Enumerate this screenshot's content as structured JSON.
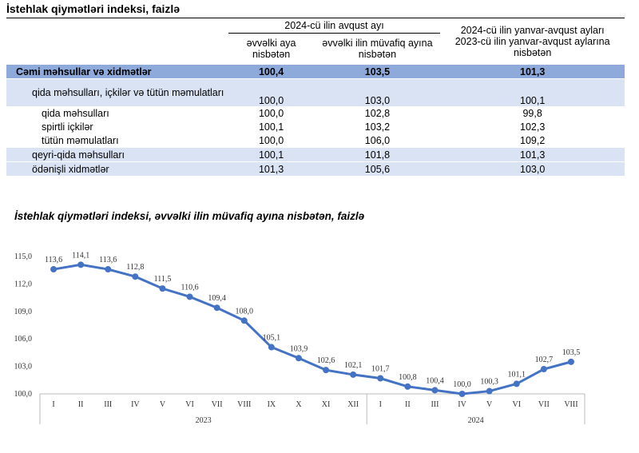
{
  "title": "İstehlak qiymətləri indeksi, faizlə",
  "table": {
    "group_header": "2024-cü ilin avqust ayı",
    "columns": [
      "əvvəlki aya nisbətən",
      "əvvəlki ilin müvafiq ayına nisbətən",
      "2024-cü ilin yanvar-avqust ayları 2023-cü ilin yanvar-avqust aylarına nisbətən"
    ],
    "rows": [
      [
        "Cəmi məhsullar və xidmətlər",
        "100,4",
        "103,5",
        "101,3"
      ],
      [
        "qida məhsulları, içkilər və tütün məmulatları",
        "100,0",
        "103,0",
        "100,1"
      ],
      [
        "qida məhsulları",
        "100,0",
        "102,8",
        "99,8"
      ],
      [
        "spirtli içkilər",
        "100,1",
        "103,2",
        "102,3"
      ],
      [
        "tütün məmulatları",
        "100,0",
        "106,0",
        "109,2"
      ],
      [
        "qeyri-qida məhsulları",
        "100,1",
        "101,8",
        "101,3"
      ],
      [
        "ödənişli xidmətlər",
        "101,3",
        "105,6",
        "103,0"
      ]
    ]
  },
  "chart_data": {
    "type": "line",
    "title": "İstehlak qiymətləri indeksi, əvvəlki ilin müvafiq ayına nisbətən, faizlə",
    "groups": [
      {
        "name": "2023",
        "categories": [
          "I",
          "II",
          "III",
          "IV",
          "V",
          "VI",
          "VII",
          "VIII",
          "IX",
          "X",
          "XI",
          "XII"
        ]
      },
      {
        "name": "2024",
        "categories": [
          "I",
          "II",
          "III",
          "IV",
          "V",
          "VI",
          "VII",
          "VIII"
        ]
      }
    ],
    "values": [
      113.6,
      114.1,
      113.6,
      112.8,
      111.5,
      110.6,
      109.4,
      108.0,
      105.1,
      103.9,
      102.6,
      102.1,
      101.7,
      100.8,
      100.4,
      100.0,
      100.3,
      101.1,
      102.7,
      103.5
    ],
    "value_labels": [
      "113,6",
      "114,1",
      "113,6",
      "112,8",
      "111,5",
      "110,6",
      "109,4",
      "108,0",
      "105,1",
      "103,9",
      "102,6",
      "102,1",
      "101,7",
      "100,8",
      "100,4",
      "100,0",
      "100,3",
      "101,1",
      "102,7",
      "103,5"
    ],
    "color": "#4472c4",
    "ylim": [
      100,
      115
    ],
    "yticks": [
      {
        "value": 100,
        "label": "100,0"
      },
      {
        "value": 103,
        "label": "103,0"
      },
      {
        "value": 106,
        "label": "106,0"
      },
      {
        "value": 109,
        "label": "109,0"
      },
      {
        "value": 112,
        "label": "112,0"
      },
      {
        "value": 115,
        "label": "115,0"
      }
    ]
  }
}
